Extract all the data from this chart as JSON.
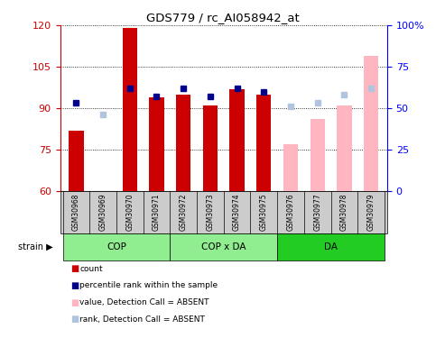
{
  "title": "GDS779 / rc_AI058942_at",
  "samples": [
    "GSM30968",
    "GSM30969",
    "GSM30970",
    "GSM30971",
    "GSM30972",
    "GSM30973",
    "GSM30974",
    "GSM30975",
    "GSM30976",
    "GSM30977",
    "GSM30978",
    "GSM30979"
  ],
  "count_values": [
    82,
    null,
    119,
    94,
    95,
    91,
    97,
    95,
    null,
    null,
    null,
    null
  ],
  "count_absent_values": [
    null,
    null,
    null,
    null,
    null,
    null,
    null,
    null,
    77,
    86,
    91,
    109
  ],
  "rank_values": [
    53,
    null,
    62,
    57,
    62,
    57,
    62,
    60,
    null,
    null,
    null,
    null
  ],
  "rank_absent_values": [
    null,
    46,
    null,
    null,
    null,
    null,
    null,
    null,
    51,
    53,
    58,
    62
  ],
  "ylim_left": [
    60,
    120
  ],
  "ylim_right": [
    0,
    100
  ],
  "yticks_left": [
    60,
    75,
    90,
    105,
    120
  ],
  "yticks_right": [
    0,
    25,
    50,
    75,
    100
  ],
  "ytick_labels_left": [
    "60",
    "75",
    "90",
    "105",
    "120"
  ],
  "ytick_labels_right": [
    "0",
    "25",
    "50",
    "75",
    "100%"
  ],
  "count_color": "#CC0000",
  "count_absent_color": "#FFB6C1",
  "rank_color": "#00008B",
  "rank_absent_color": "#B0C4DE",
  "grid_color": "#888888",
  "group_light_color": "#90EE90",
  "group_dark_color": "#22CC22",
  "groups": [
    {
      "label": "COP",
      "start": 0,
      "end": 3,
      "dark": false
    },
    {
      "label": "COP x DA",
      "start": 4,
      "end": 7,
      "dark": false
    },
    {
      "label": "DA",
      "start": 8,
      "end": 11,
      "dark": true
    }
  ],
  "legend_colors": [
    "#CC0000",
    "#00008B",
    "#FFB6C1",
    "#B0C4DE"
  ],
  "legend_labels": [
    "count",
    "percentile rank within the sample",
    "value, Detection Call = ABSENT",
    "rank, Detection Call = ABSENT"
  ]
}
